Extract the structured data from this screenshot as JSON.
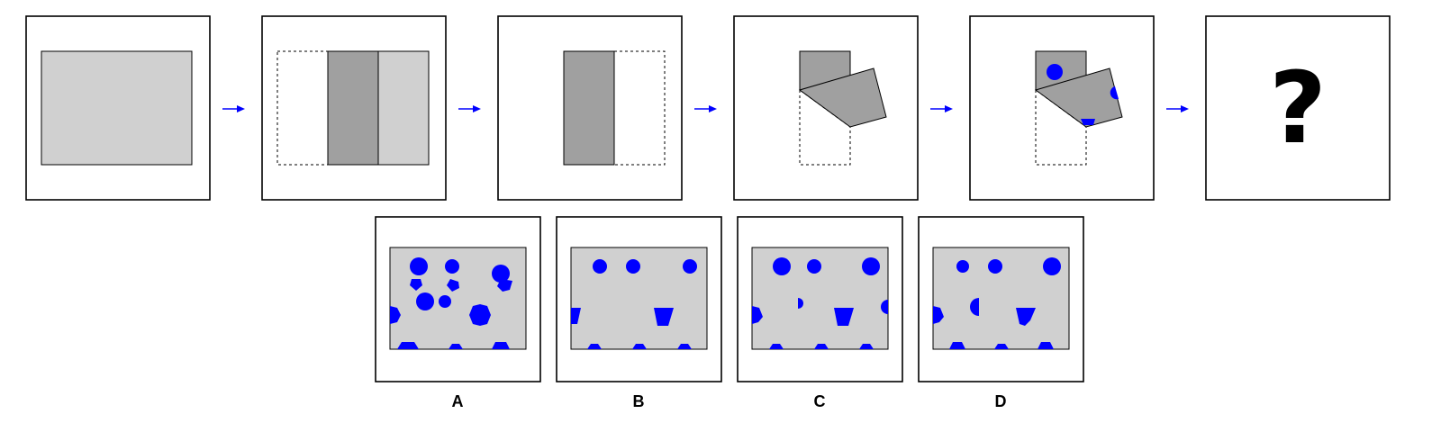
{
  "question_mark": "?",
  "options": [
    {
      "label": "A"
    },
    {
      "label": "B"
    },
    {
      "label": "C"
    },
    {
      "label": "D"
    }
  ],
  "colors": {
    "paper": "#d0d0d0",
    "paper_folded": "#a0a0a0",
    "hole": "#0000ff",
    "arrow": "#0000ff",
    "border": "#000000"
  }
}
